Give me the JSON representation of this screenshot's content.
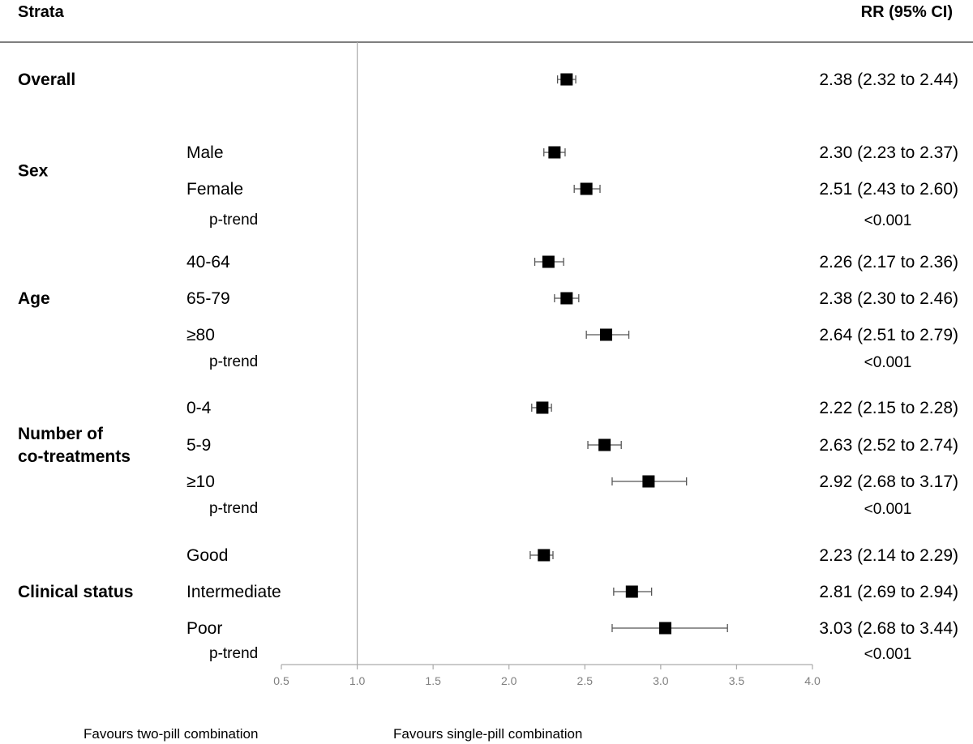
{
  "header": {
    "strata_label": "Strata",
    "rr_label": "RR (95% CI)"
  },
  "chart_data": {
    "type": "forest",
    "xlim": [
      0.5,
      4.0
    ],
    "x_ticks": [
      0.5,
      1.0,
      1.5,
      2.0,
      2.5,
      3.0,
      3.5,
      4.0
    ],
    "x_tick_labels": [
      "0.5",
      "1.0",
      "1.5",
      "2.0",
      "2.5",
      "3.0",
      "3.5",
      "4.0"
    ],
    "reference_line": 1.0,
    "footer_left": "Favours two-pill combination",
    "footer_right": "Favours single-pill combination",
    "groups": [
      {
        "name": "Overall",
        "rows": [
          {
            "label": "",
            "rr": 2.38,
            "lo": 2.32,
            "hi": 2.44,
            "text": "2.38 (2.32 to 2.44)"
          }
        ],
        "p_trend": null
      },
      {
        "name": "Sex",
        "rows": [
          {
            "label": "Male",
            "rr": 2.3,
            "lo": 2.23,
            "hi": 2.37,
            "text": "2.30 (2.23 to 2.37)"
          },
          {
            "label": "Female",
            "rr": 2.51,
            "lo": 2.43,
            "hi": 2.6,
            "text": "2.51 (2.43 to 2.60)"
          }
        ],
        "p_trend": {
          "label": "p-trend",
          "value": "<0.001"
        }
      },
      {
        "name": "Age",
        "rows": [
          {
            "label": "40-64",
            "rr": 2.26,
            "lo": 2.17,
            "hi": 2.36,
            "text": "2.26 (2.17 to 2.36)"
          },
          {
            "label": "65-79",
            "rr": 2.38,
            "lo": 2.3,
            "hi": 2.46,
            "text": "2.38 (2.30 to 2.46)"
          },
          {
            "label": "≥80",
            "rr": 2.64,
            "lo": 2.51,
            "hi": 2.79,
            "text": "2.64 (2.51 to 2.79)"
          }
        ],
        "p_trend": {
          "label": "p-trend",
          "value": "<0.001"
        }
      },
      {
        "name": "Number of\nco-treatments",
        "rows": [
          {
            "label": "0-4",
            "rr": 2.22,
            "lo": 2.15,
            "hi": 2.28,
            "text": "2.22 (2.15 to 2.28)"
          },
          {
            "label": "5-9",
            "rr": 2.63,
            "lo": 2.52,
            "hi": 2.74,
            "text": "2.63 (2.52 to 2.74)"
          },
          {
            "label": "≥10",
            "rr": 2.92,
            "lo": 2.68,
            "hi": 3.17,
            "text": "2.92 (2.68 to 3.17)"
          }
        ],
        "p_trend": {
          "label": "p-trend",
          "value": "<0.001"
        }
      },
      {
        "name": "Clinical status",
        "rows": [
          {
            "label": "Good",
            "rr": 2.23,
            "lo": 2.14,
            "hi": 2.29,
            "text": "2.23 (2.14 to 2.29)"
          },
          {
            "label": "Intermediate",
            "rr": 2.81,
            "lo": 2.69,
            "hi": 2.94,
            "text": "2.81 (2.69 to 2.94)"
          },
          {
            "label": "Poor",
            "rr": 3.03,
            "lo": 2.68,
            "hi": 3.44,
            "text": "3.03 (2.68 to 3.44)"
          }
        ],
        "p_trend": {
          "label": "p-trend",
          "value": "<0.001"
        }
      }
    ]
  }
}
